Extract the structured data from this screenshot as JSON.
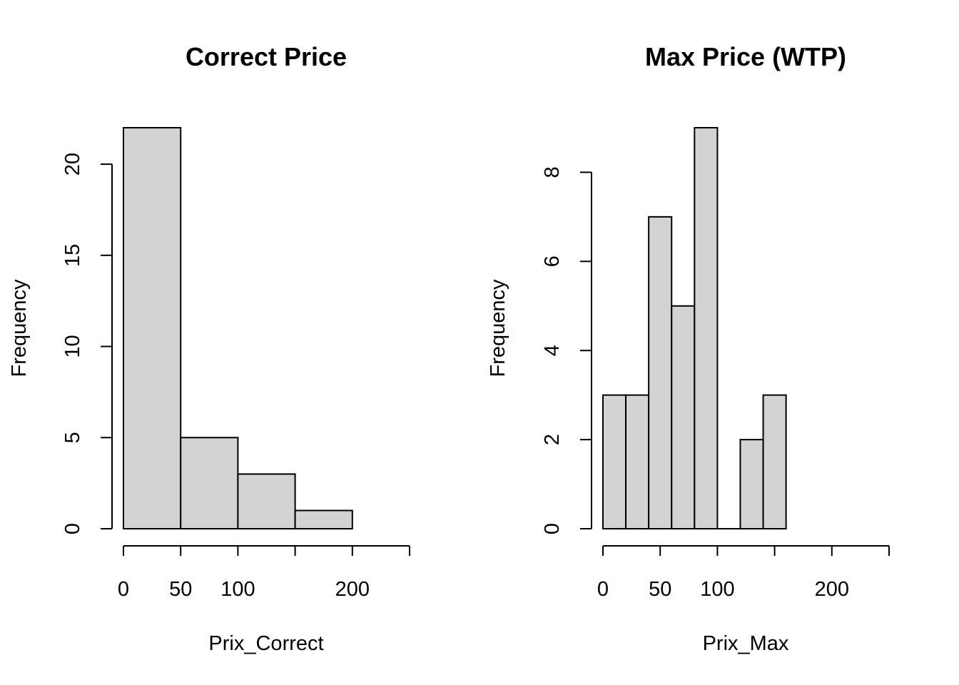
{
  "chart_data": [
    {
      "type": "bar",
      "subtype": "histogram",
      "title": "Correct Price",
      "xlabel": "Prix_Correct",
      "ylabel": "Frequency",
      "bins": [
        [
          0,
          50
        ],
        [
          50,
          100
        ],
        [
          100,
          150
        ],
        [
          150,
          200
        ]
      ],
      "values": [
        22,
        5,
        3,
        1
      ],
      "xlim": [
        0,
        250
      ],
      "ylim": [
        0,
        22
      ],
      "x_ticks": [
        0,
        50,
        100,
        150,
        200,
        250
      ],
      "x_tick_labels": [
        "0",
        "50",
        "100",
        "",
        "200",
        ""
      ],
      "y_ticks": [
        0,
        5,
        10,
        15,
        20
      ],
      "y_tick_labels": [
        "0",
        "5",
        "10",
        "15",
        "20"
      ],
      "grid": false,
      "fill_color": "#d3d3d3"
    },
    {
      "type": "bar",
      "subtype": "histogram",
      "title": "Max Price (WTP)",
      "xlabel": "Prix_Max",
      "ylabel": "Frequency",
      "bins": [
        [
          0,
          20
        ],
        [
          20,
          40
        ],
        [
          40,
          60
        ],
        [
          60,
          80
        ],
        [
          80,
          100
        ],
        [
          100,
          120
        ],
        [
          120,
          140
        ],
        [
          140,
          160
        ]
      ],
      "values": [
        3,
        3,
        7,
        5,
        9,
        0,
        2,
        3
      ],
      "xlim": [
        0,
        250
      ],
      "ylim": [
        0,
        9
      ],
      "x_ticks": [
        0,
        50,
        100,
        150,
        200,
        250
      ],
      "x_tick_labels": [
        "0",
        "50",
        "100",
        "",
        "200",
        ""
      ],
      "y_ticks": [
        0,
        2,
        4,
        6,
        8
      ],
      "y_tick_labels": [
        "0",
        "2",
        "4",
        "6",
        "8"
      ],
      "grid": false,
      "fill_color": "#d3d3d3"
    }
  ]
}
